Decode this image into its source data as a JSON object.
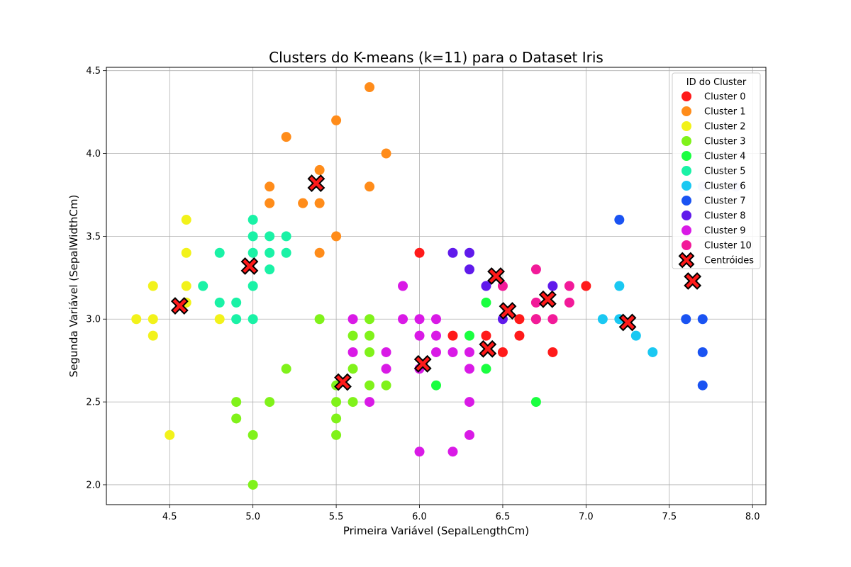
{
  "chart_data": {
    "type": "scatter",
    "title": "Clusters do K-means (k=11) para o Dataset Iris",
    "xlabel": "Primeira Variável (SepalLengthCm)",
    "ylabel": "Segunda Variável (SepalWidthCm)",
    "xlim": [
      4.12,
      8.08
    ],
    "ylim": [
      1.88,
      4.52
    ],
    "xticks": [
      "4.5",
      "5.0",
      "5.5",
      "6.0",
      "6.5",
      "7.0",
      "7.5",
      "8.0"
    ],
    "yticks": [
      "2.0",
      "2.5",
      "3.0",
      "3.5",
      "4.0",
      "4.5"
    ],
    "grid": true,
    "legend_title": "ID do Cluster",
    "legend_position": "top-right",
    "series": [
      {
        "name": "Cluster 0",
        "color": "#ff1a1a",
        "points": [
          [
            6.0,
            3.4
          ],
          [
            6.2,
            2.9
          ],
          [
            6.4,
            2.9
          ],
          [
            6.5,
            2.8
          ],
          [
            6.6,
            3.0
          ],
          [
            6.6,
            2.9
          ],
          [
            6.7,
            3.0
          ],
          [
            6.8,
            2.8
          ],
          [
            7.0,
            3.2
          ]
        ]
      },
      {
        "name": "Cluster 1",
        "color": "#ff8c1a",
        "points": [
          [
            5.7,
            4.4
          ],
          [
            5.5,
            4.2
          ],
          [
            5.2,
            4.1
          ],
          [
            5.8,
            4.0
          ],
          [
            5.4,
            3.9
          ],
          [
            5.1,
            3.8
          ],
          [
            5.7,
            3.8
          ],
          [
            5.1,
            3.7
          ],
          [
            5.3,
            3.7
          ],
          [
            5.4,
            3.7
          ],
          [
            5.5,
            3.5
          ],
          [
            5.4,
            3.4
          ]
        ]
      },
      {
        "name": "Cluster 2",
        "color": "#f2f21a",
        "points": [
          [
            4.6,
            3.6
          ],
          [
            4.6,
            3.4
          ],
          [
            4.6,
            3.2
          ],
          [
            4.4,
            3.2
          ],
          [
            4.6,
            3.1
          ],
          [
            4.3,
            3.0
          ],
          [
            4.4,
            3.0
          ],
          [
            4.8,
            3.0
          ],
          [
            4.4,
            2.9
          ],
          [
            4.5,
            2.3
          ]
        ]
      },
      {
        "name": "Cluster 3",
        "color": "#80f21a",
        "points": [
          [
            5.4,
            3.0
          ],
          [
            5.6,
            2.9
          ],
          [
            5.7,
            2.9
          ],
          [
            5.7,
            2.8
          ],
          [
            5.6,
            2.7
          ],
          [
            5.2,
            2.7
          ],
          [
            5.5,
            2.6
          ],
          [
            5.8,
            2.6
          ],
          [
            5.7,
            2.6
          ],
          [
            4.9,
            2.5
          ],
          [
            5.1,
            2.5
          ],
          [
            5.5,
            2.5
          ],
          [
            5.6,
            2.5
          ],
          [
            4.9,
            2.4
          ],
          [
            5.5,
            2.4
          ],
          [
            5.0,
            2.3
          ],
          [
            5.5,
            2.3
          ],
          [
            5.0,
            2.0
          ],
          [
            5.7,
            3.0
          ]
        ]
      },
      {
        "name": "Cluster 4",
        "color": "#1aff40",
        "points": [
          [
            6.4,
            3.1
          ],
          [
            6.3,
            2.9
          ],
          [
            6.4,
            2.7
          ],
          [
            6.1,
            2.6
          ],
          [
            6.7,
            2.5
          ]
        ]
      },
      {
        "name": "Cluster 5",
        "color": "#1af2a6",
        "points": [
          [
            5.0,
            3.6
          ],
          [
            5.0,
            3.5
          ],
          [
            5.1,
            3.5
          ],
          [
            5.2,
            3.5
          ],
          [
            4.8,
            3.4
          ],
          [
            5.0,
            3.4
          ],
          [
            5.1,
            3.4
          ],
          [
            5.2,
            3.4
          ],
          [
            5.1,
            3.3
          ],
          [
            4.7,
            3.2
          ],
          [
            5.0,
            3.2
          ],
          [
            4.8,
            3.1
          ],
          [
            4.9,
            3.1
          ],
          [
            4.9,
            3.0
          ],
          [
            5.0,
            3.0
          ]
        ]
      },
      {
        "name": "Cluster 6",
        "color": "#1ac8f2",
        "points": [
          [
            7.2,
            3.2
          ],
          [
            7.1,
            3.0
          ],
          [
            7.2,
            3.0
          ],
          [
            7.3,
            2.9
          ],
          [
            7.4,
            2.8
          ]
        ]
      },
      {
        "name": "Cluster 7",
        "color": "#1a53f2",
        "points": [
          [
            7.2,
            3.6
          ],
          [
            7.6,
            3.0
          ],
          [
            7.7,
            3.0
          ],
          [
            7.7,
            2.8
          ],
          [
            7.7,
            2.6
          ]
        ]
      },
      {
        "name": "Cluster 8",
        "color": "#601aeb",
        "points": [
          [
            6.2,
            3.4
          ],
          [
            6.3,
            3.4
          ],
          [
            6.3,
            3.3
          ],
          [
            6.4,
            3.2
          ],
          [
            6.8,
            3.2
          ],
          [
            6.5,
            3.0
          ]
        ]
      },
      {
        "name": "Cluster 9",
        "color": "#d91ae6",
        "points": [
          [
            5.9,
            3.2
          ],
          [
            5.6,
            3.0
          ],
          [
            5.9,
            3.0
          ],
          [
            6.0,
            3.0
          ],
          [
            6.1,
            3.0
          ],
          [
            6.0,
            2.9
          ],
          [
            6.1,
            2.9
          ],
          [
            6.3,
            2.8
          ],
          [
            5.6,
            2.8
          ],
          [
            5.8,
            2.8
          ],
          [
            6.1,
            2.8
          ],
          [
            6.2,
            2.8
          ],
          [
            5.8,
            2.7
          ],
          [
            6.0,
            2.7
          ],
          [
            6.3,
            2.7
          ],
          [
            5.7,
            2.5
          ],
          [
            6.3,
            2.5
          ],
          [
            6.3,
            2.3
          ],
          [
            6.0,
            2.2
          ],
          [
            6.2,
            2.2
          ]
        ]
      },
      {
        "name": "Cluster 10",
        "color": "#f21a99",
        "points": [
          [
            6.7,
            3.3
          ],
          [
            6.5,
            3.2
          ],
          [
            6.7,
            3.1
          ],
          [
            6.9,
            3.2
          ],
          [
            6.9,
            3.1
          ],
          [
            6.7,
            3.0
          ],
          [
            6.8,
            3.0
          ]
        ]
      }
    ],
    "extra_points": [
      {
        "color": "#c8d2f5",
        "points": [
          [
            7.7,
            3.8
          ],
          [
            7.9,
            3.8
          ]
        ]
      }
    ],
    "centroids": {
      "name": "Centróides",
      "color": "#ff1a1a",
      "points": [
        [
          4.56,
          3.08
        ],
        [
          4.98,
          3.32
        ],
        [
          5.38,
          3.82
        ],
        [
          5.54,
          2.62
        ],
        [
          6.02,
          2.73
        ],
        [
          6.41,
          2.82
        ],
        [
          6.46,
          3.26
        ],
        [
          6.53,
          3.05
        ],
        [
          6.77,
          3.12
        ],
        [
          7.25,
          2.98
        ],
        [
          7.64,
          3.23
        ]
      ]
    }
  }
}
